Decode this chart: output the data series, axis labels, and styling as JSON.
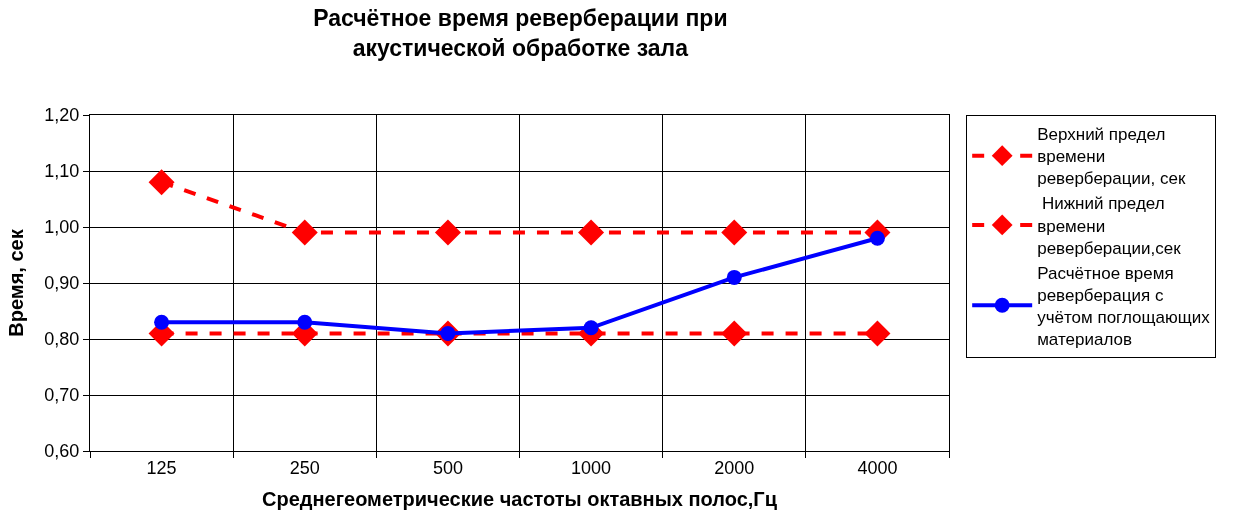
{
  "chart_data": {
    "type": "line",
    "title": "Расчётное время реверберации при\nакустической обработке зала",
    "xlabel": "Среднегеометрические частоты октавных полос,Гц",
    "ylabel": "Время, сек",
    "categories": [
      "125",
      "250",
      "500",
      "1000",
      "2000",
      "4000"
    ],
    "series": [
      {
        "name": "Верхний предел времени реверберации, сек",
        "color": "#ff0000",
        "marker": "diamond",
        "line_style": "dashed",
        "values": [
          1.08,
          0.99,
          0.99,
          0.99,
          0.99,
          0.99
        ]
      },
      {
        "name": " Нижний предел времени реверберации,сек",
        "color": "#ff0000",
        "marker": "diamond",
        "line_style": "dashed",
        "values": [
          0.81,
          0.81,
          0.81,
          0.81,
          0.81,
          0.81
        ]
      },
      {
        "name": "Расчётное время реверберация с учётом поглощающих материалов",
        "color": "#0000ff",
        "marker": "circle",
        "line_style": "solid",
        "values": [
          0.83,
          0.83,
          0.81,
          0.82,
          0.91,
          0.98
        ]
      }
    ],
    "ylim": [
      0.6,
      1.2
    ],
    "yticks": [
      {
        "value": 0.6,
        "label": "0,60"
      },
      {
        "value": 0.7,
        "label": "0,70"
      },
      {
        "value": 0.8,
        "label": "0,80"
      },
      {
        "value": 0.9,
        "label": "0,90"
      },
      {
        "value": 1.0,
        "label": "1,00"
      },
      {
        "value": 1.1,
        "label": "1,10"
      },
      {
        "value": 1.2,
        "label": "1,20"
      }
    ],
    "grid": true,
    "legend": "right"
  }
}
